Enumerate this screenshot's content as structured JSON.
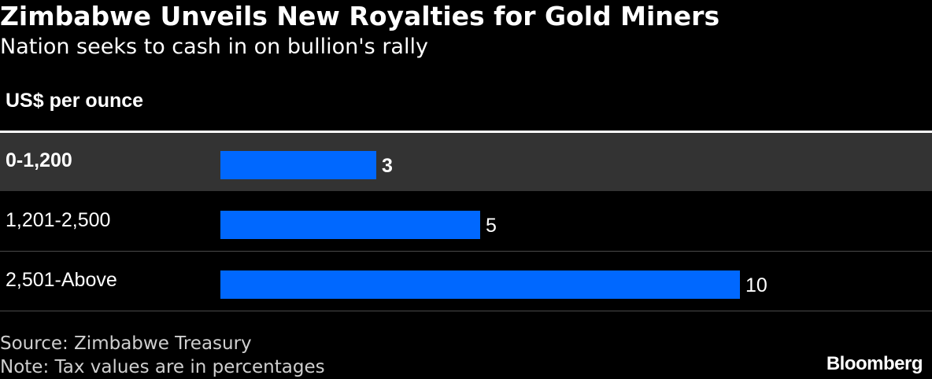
{
  "colors": {
    "background": "#000000",
    "bar": "#0068ff",
    "highlight_row": "#333333",
    "row_divider": "#4a4a4a",
    "text": "#ffffff",
    "footnote_text": "#cfcfcf"
  },
  "chart_data": {
    "type": "bar",
    "orientation": "horizontal",
    "title": "Zimbabwe Unveils New Royalties for Gold Miners",
    "subtitle": "Nation seeks to cash in on bullion's rally",
    "category_header": "US$ per ounce",
    "categories": [
      "0-1,200",
      "1,201-2,500",
      "2,501-Above"
    ],
    "values": [
      3,
      5,
      10
    ],
    "value_labels": [
      "3",
      "5",
      "10"
    ],
    "highlighted_category": "0-1,200",
    "xlim": [
      0,
      10
    ],
    "grid": false,
    "source": "Source: Zimbabwe Treasury",
    "note": "Note: Tax values are in percentages",
    "brand": "Bloomberg"
  }
}
